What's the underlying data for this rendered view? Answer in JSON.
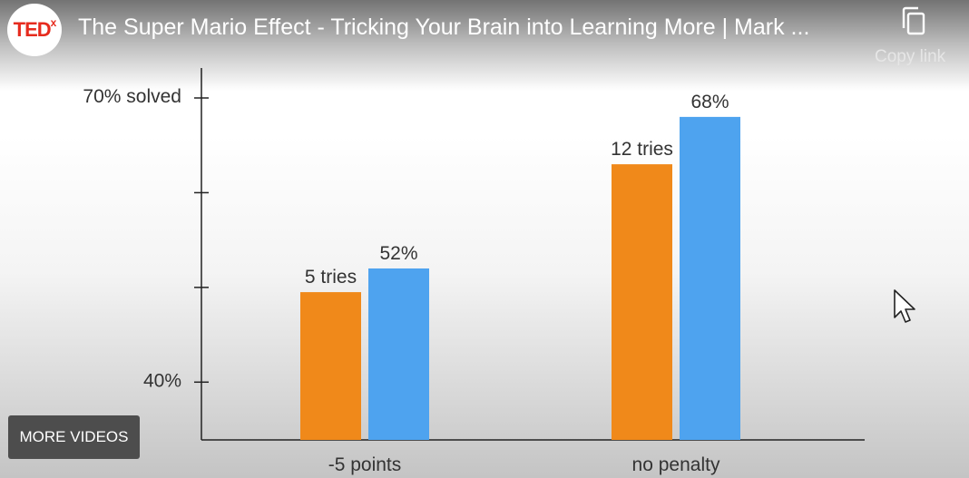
{
  "player": {
    "title": "The Super Mario Effect - Tricking Your Brain into Learning More | Mark ...",
    "channel_logo_text": "TED",
    "channel_logo_sup": "x",
    "copy_link_label": "Copy link",
    "more_videos_label": "MORE VIDEOS"
  },
  "colors": {
    "ted_red": "#e62b1e",
    "tries_bar": "#f0891a",
    "percent_bar": "#4ea3ef"
  },
  "icons": [
    "copy-icon",
    "mouse-pointer-icon"
  ],
  "chart_data": {
    "type": "bar",
    "categories": [
      "-5 points",
      "no penalty"
    ],
    "series": [
      {
        "values": [
          49.5,
          63
        ],
        "labels": [
          "5 tries",
          "12 tries"
        ]
      },
      {
        "values": [
          52,
          68
        ],
        "labels": [
          "52%",
          "68%"
        ]
      }
    ],
    "y_ticks": [
      {
        "value": 70,
        "label": "70% solved"
      },
      {
        "value": 60,
        "label": ""
      },
      {
        "value": 50,
        "label": ""
      },
      {
        "value": 40,
        "label": "40%"
      }
    ],
    "ylim": [
      33.9,
      70
    ],
    "grid": false
  }
}
